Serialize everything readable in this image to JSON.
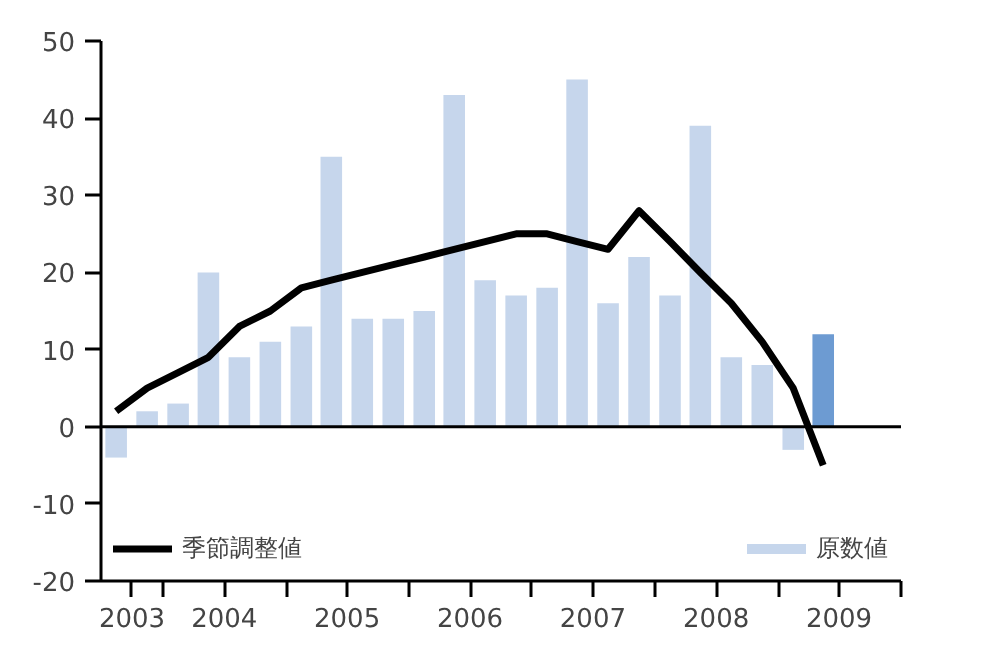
{
  "chart_data": {
    "type": "bar",
    "x": [
      "2003-08-15",
      "2003-11-15",
      "2004-02-15",
      "2004-05-15",
      "2004-08-15",
      "2004-11-15",
      "2005-02-15",
      "2005-05-15",
      "2005-08-15",
      "2005-11-15",
      "2006-02-15",
      "2006-05-15",
      "2006-08-15",
      "2006-11-15",
      "2007-02-15",
      "2007-05-15",
      "2007-08-15",
      "2007-11-15",
      "2008-02-15",
      "2008-05-15",
      "2008-08-15",
      "2008-11-15",
      "2009-02-15",
      "2009-05-15"
    ],
    "series": [
      {
        "name": "原数値",
        "color": "#c6d6ec",
        "colors": [
          "#c6d6ec",
          "#c6d6ec",
          "#c6d6ec",
          "#c6d6ec",
          "#c6d6ec",
          "#c6d6ec",
          "#c6d6ec",
          "#c6d6ec",
          "#c6d6ec",
          "#c6d6ec",
          "#c6d6ec",
          "#c6d6ec",
          "#c6d6ec",
          "#c6d6ec",
          "#c6d6ec",
          "#c6d6ec",
          "#c6d6ec",
          "#c6d6ec",
          "#c6d6ec",
          "#c6d6ec",
          "#c6d6ec",
          "#c6d6ec",
          "#c6d6ec",
          "#6d9bd2"
        ],
        "values": [
          -4,
          2,
          3,
          20,
          9,
          11,
          13,
          35,
          14,
          14,
          15,
          43,
          19,
          17,
          18,
          45,
          16,
          22,
          17,
          39,
          9,
          8,
          -3,
          12
        ]
      },
      {
        "name": "季節調整値",
        "type": "line",
        "color": "#000000",
        "values": [
          2,
          5,
          7,
          9,
          13,
          15,
          18,
          19,
          20,
          21,
          22,
          23,
          24,
          25,
          25,
          24,
          23,
          28,
          24,
          20,
          16,
          11,
          5,
          -5
        ]
      }
    ],
    "xlim": [
      "2003-07-01",
      "2010-01-01"
    ],
    "xticks": [
      {
        "value": "2003-10-01",
        "label": "2003"
      },
      {
        "value": "2004-01-01",
        "label": null
      },
      {
        "value": "2004-07-01",
        "label": "2004"
      },
      {
        "value": "2005-01-01",
        "label": null
      },
      {
        "value": "2005-07-01",
        "label": "2005"
      },
      {
        "value": "2006-01-01",
        "label": null
      },
      {
        "value": "2006-07-01",
        "label": "2006"
      },
      {
        "value": "2007-01-01",
        "label": null
      },
      {
        "value": "2007-07-01",
        "label": "2007"
      },
      {
        "value": "2008-01-01",
        "label": null
      },
      {
        "value": "2008-07-01",
        "label": "2008"
      },
      {
        "value": "2009-01-01",
        "label": null
      },
      {
        "value": "2009-07-01",
        "label": "2009"
      },
      {
        "value": "2010-01-01",
        "label": null
      }
    ],
    "ylim": [
      -20,
      50
    ],
    "yticks": [
      -20,
      -10,
      0,
      10,
      20,
      30,
      40,
      50
    ],
    "ref_lines": [
      {
        "axis": "y",
        "value": 0,
        "color": "#000000"
      }
    ],
    "grid": false,
    "legend": "bottom",
    "marker": "none",
    "line_style": "solid"
  }
}
